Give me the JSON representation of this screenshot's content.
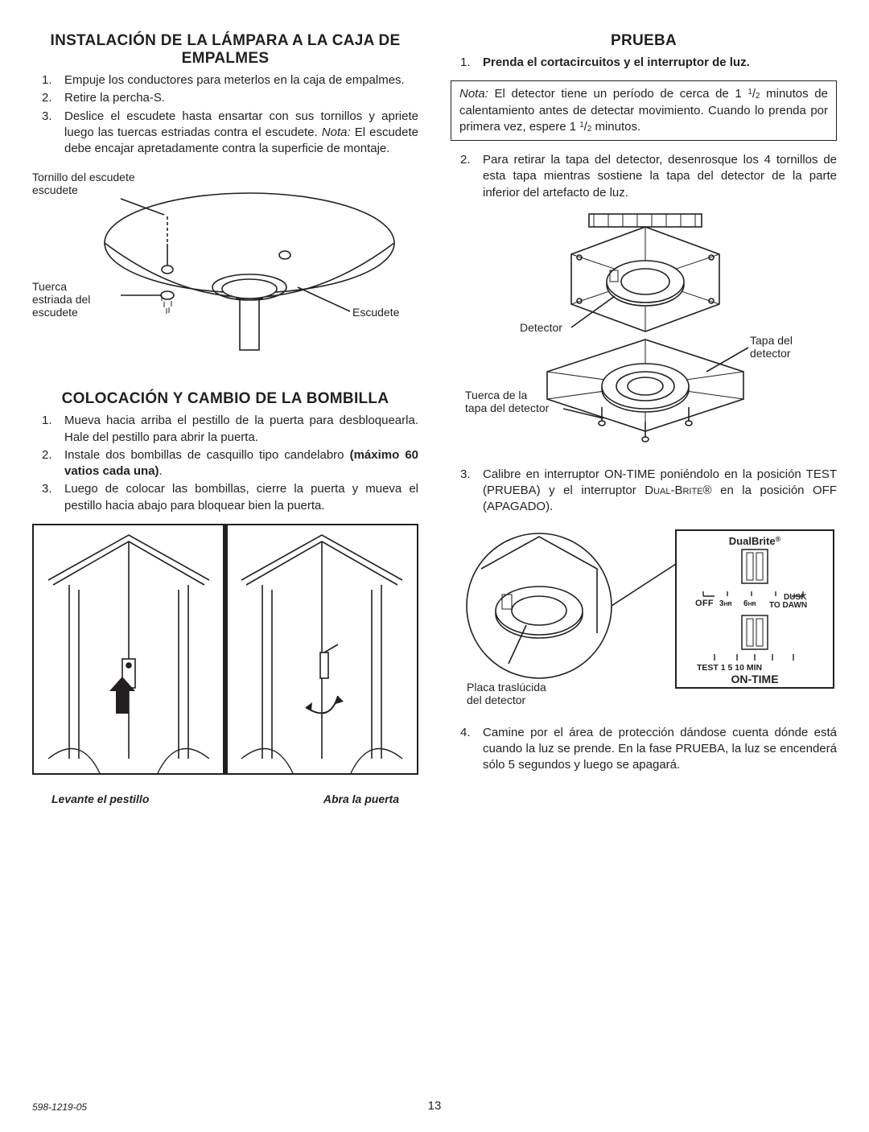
{
  "doc_number": "598-1219-05",
  "page_number": "13",
  "left": {
    "h1": "INSTALACIÓN DE LA LÁMPARA A LA CAJA DE EMPALMES",
    "items1": [
      "Empuje los conductores para meterlos en la caja de empalmes.",
      "Retire la percha-S.",
      "Deslice el escudete hasta ensartar con sus tornillos y apriete luego las tuercas estriadas contra el escudete. <span class=\"i\">Nota:</span> El escudete debe encajar apretadamente contra la superficie de montaje."
    ],
    "fig1_labels": {
      "a": "Tornillo del escudete",
      "b": "Tuerca estriada del escudete",
      "c": "Escudete"
    },
    "h2": "COLOCACIÓN Y CAMBIO DE LA BOMBILLA",
    "items2": [
      "Mueva hacia arriba el pestillo de la puerta para desbloquearla. Hale del pestillo para abrir la puerta.",
      "Instale dos bombillas de casquillo tipo candelabro <span class=\"b\">(máximo 60 vatios cada una)</span>.",
      "Luego de colocar las bombillas, cierre la puerta y mueva el pestillo hacia abajo para bloquear bien la puerta."
    ],
    "fig2_caption_left": "Levante el pestillo",
    "fig2_caption_right": "Abra la puerta"
  },
  "right": {
    "h1": "PRUEBA",
    "item1": "Prenda el cortacircuitos y el interruptor de luz.",
    "note": "<span class=\"i\">Nota:</span> El detector tiene un período de cerca de 1 <sup class=\"frac-n\">1</sup>/<sub class=\"frac-d\">2</sub> minutos de calentamiento antes de detectar movimiento. Cuando lo prenda por primera vez, espere 1 <sup class=\"frac-n\">1</sup>/<sub class=\"frac-d\">2</sub> minutos.",
    "item2": "Para retirar la tapa del detector, desenrosque los 4 tornillos de esta tapa mientras sostiene la tapa del detector de la parte inferior del artefacto de luz.",
    "fig3_labels": {
      "a": "Detector",
      "b": "Tapa del detector",
      "c": "Tuerca de la tapa del detector"
    },
    "item3": "Calibre en interruptor ON-TIME poniéndolo en la posición TEST (PRUEBA) y el interruptor <span class=\"sc\">Dual-Brite</span>® en la posición OFF (APAGADO).",
    "fig4_labels": {
      "plate": "Placa traslúcida del detector",
      "dualbrite": "DualBrite®",
      "off": "OFF",
      "hr3": "3HR",
      "hr6": "6HR",
      "dusk": "DUSK TO DAWN",
      "test": "TEST",
      "m1": "1",
      "m5": "5",
      "m10": "10",
      "min": "MIN",
      "ontime": "ON-TIME"
    },
    "item4": "Camine por el área de protección dándose cuenta dónde está cuando la luz se prende. En la fase PRUEBA, la luz se encenderá sólo 5 segundos y luego se apagará."
  }
}
